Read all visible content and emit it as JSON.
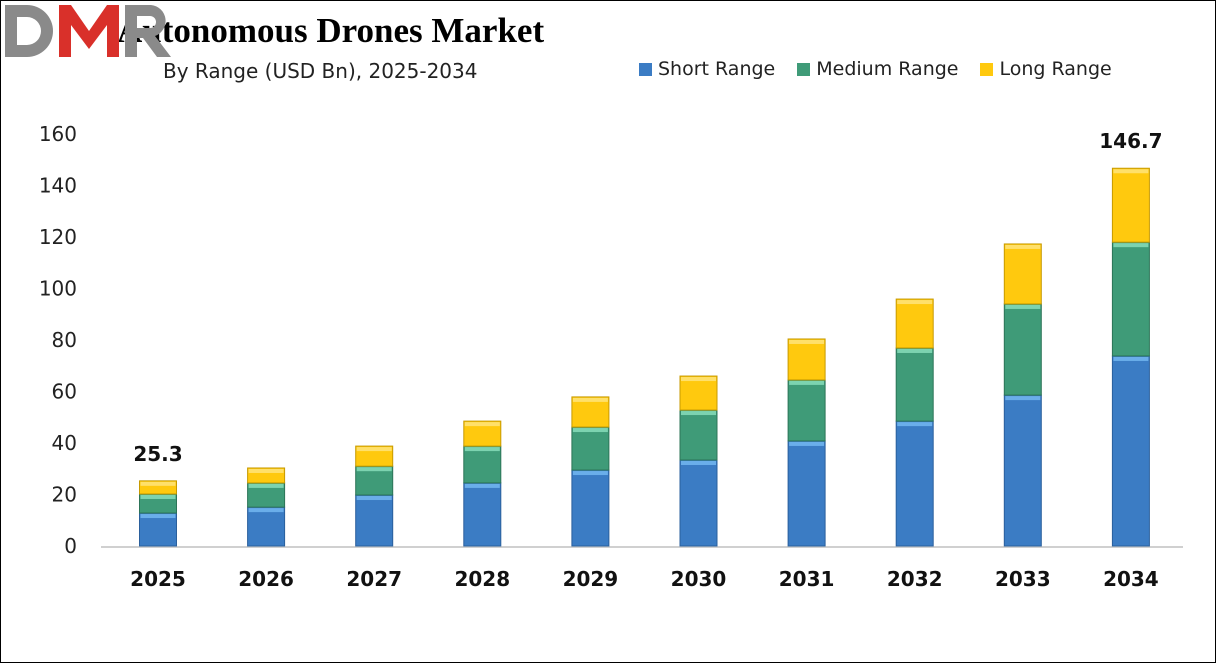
{
  "chart_data": {
    "type": "bar",
    "stacked": true,
    "title": "Autonomous Drones Market",
    "subtitle": "By Range (USD Bn), 2025-2034",
    "xlabel": "",
    "ylabel": "",
    "ylim": [
      0,
      160
    ],
    "yticks": [
      0,
      20,
      40,
      60,
      80,
      100,
      120,
      140,
      160
    ],
    "grid": false,
    "legend_position": "top-right",
    "categories": [
      "2025",
      "2026",
      "2027",
      "2028",
      "2029",
      "2030",
      "2031",
      "2032",
      "2033",
      "2034"
    ],
    "series": [
      {
        "name": "Short Range",
        "color": "#3b7cc4",
        "values": [
          12.8,
          15.1,
          19.8,
          24.5,
          29.5,
          33.4,
          40.8,
          48.5,
          58.6,
          73.8
        ]
      },
      {
        "name": "Medium Range",
        "color": "#3f9b78",
        "values": [
          7.4,
          9.4,
          11.2,
          14.3,
          16.7,
          19.4,
          23.7,
          28.4,
          35.4,
          44.2
        ]
      },
      {
        "name": "Long Range",
        "color": "#ffc90e",
        "values": [
          5.1,
          5.8,
          7.8,
          9.7,
          11.7,
          13.2,
          15.9,
          19.0,
          23.3,
          28.7
        ]
      }
    ],
    "data_labels": [
      {
        "category": "2025",
        "text": "25.3"
      },
      {
        "category": "2034",
        "text": "146.7"
      }
    ]
  },
  "logo": {
    "text": "DMR"
  }
}
